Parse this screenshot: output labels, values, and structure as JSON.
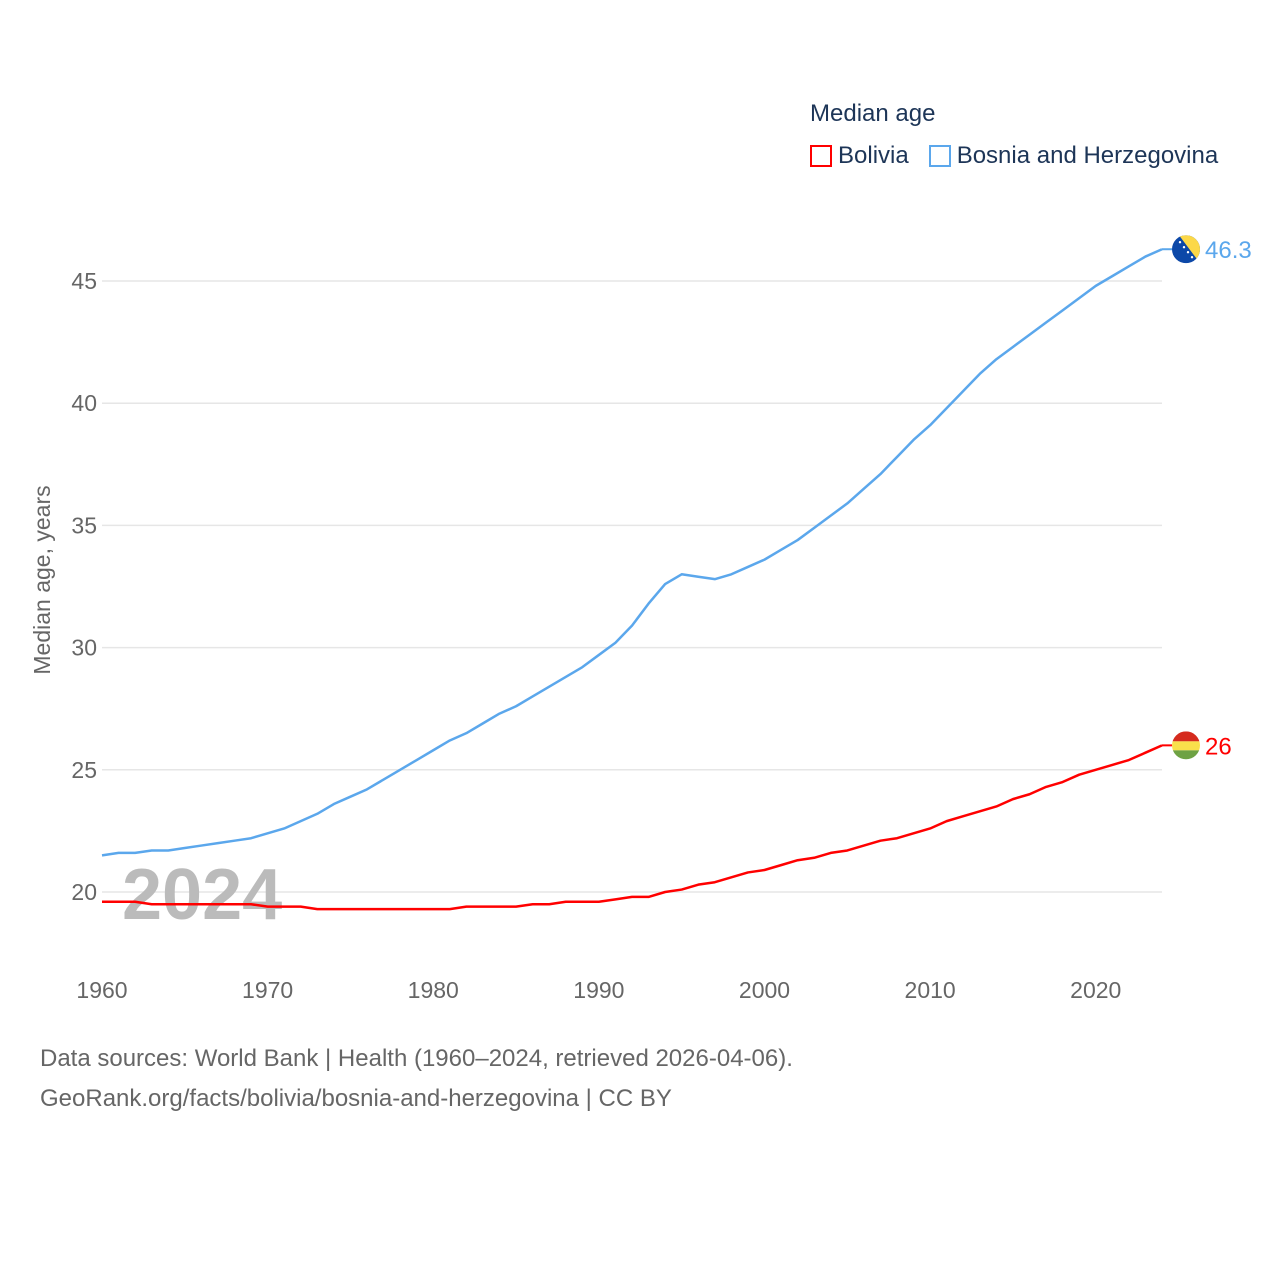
{
  "legend": {
    "title": "Median age",
    "items": [
      {
        "label": "Bolivia",
        "color": "#ff0000"
      },
      {
        "label": "Bosnia and Herzegovina",
        "color": "#5ba7ec"
      }
    ]
  },
  "watermark_year": "2024",
  "source": {
    "line1": "Data sources: World Bank | Health (1960–2024, retrieved 2026-04-06).",
    "line2": "GeoRank.org/facts/bolivia/bosnia-and-herzegovina | CC BY"
  },
  "chart_data": {
    "type": "line",
    "title": "Median age",
    "xlabel": "",
    "ylabel": "Median age, years",
    "xlim": [
      1960,
      2024
    ],
    "ylim": [
      18,
      47
    ],
    "grid": true,
    "legend_placement": "top-right",
    "x_ticks": [
      "1960",
      "1970",
      "1980",
      "1990",
      "2000",
      "2010",
      "2020"
    ],
    "y_ticks": [
      "20",
      "25",
      "30",
      "35",
      "40",
      "45"
    ],
    "x_start": 1960,
    "series": [
      {
        "name": "Bolivia",
        "color": "#ff0000",
        "end_label": "26",
        "flag": "bolivia",
        "values": [
          19.6,
          19.6,
          19.6,
          19.5,
          19.5,
          19.5,
          19.5,
          19.5,
          19.5,
          19.5,
          19.4,
          19.4,
          19.4,
          19.3,
          19.3,
          19.3,
          19.3,
          19.3,
          19.3,
          19.3,
          19.3,
          19.3,
          19.4,
          19.4,
          19.4,
          19.4,
          19.5,
          19.5,
          19.6,
          19.6,
          19.6,
          19.7,
          19.8,
          19.8,
          20.0,
          20.1,
          20.3,
          20.4,
          20.6,
          20.8,
          20.9,
          21.1,
          21.3,
          21.4,
          21.6,
          21.7,
          21.9,
          22.1,
          22.2,
          22.4,
          22.6,
          22.9,
          23.1,
          23.3,
          23.5,
          23.8,
          24.0,
          24.3,
          24.5,
          24.8,
          25.0,
          25.2,
          25.4,
          25.7,
          26.0
        ]
      },
      {
        "name": "Bosnia and Herzegovina",
        "color": "#5ba7ec",
        "end_label": "46.3",
        "flag": "bosnia",
        "values": [
          21.5,
          21.6,
          21.6,
          21.7,
          21.7,
          21.8,
          21.9,
          22.0,
          22.1,
          22.2,
          22.4,
          22.6,
          22.9,
          23.2,
          23.6,
          23.9,
          24.2,
          24.6,
          25.0,
          25.4,
          25.8,
          26.2,
          26.5,
          26.9,
          27.3,
          27.6,
          28.0,
          28.4,
          28.8,
          29.2,
          29.7,
          30.2,
          30.9,
          31.8,
          32.6,
          33.0,
          32.9,
          32.8,
          33.0,
          33.3,
          33.6,
          34.0,
          34.4,
          34.9,
          35.4,
          35.9,
          36.5,
          37.1,
          37.8,
          38.5,
          39.1,
          39.8,
          40.5,
          41.2,
          41.8,
          42.3,
          42.8,
          43.3,
          43.8,
          44.3,
          44.8,
          45.2,
          45.6,
          46.0,
          46.3
        ]
      }
    ]
  }
}
